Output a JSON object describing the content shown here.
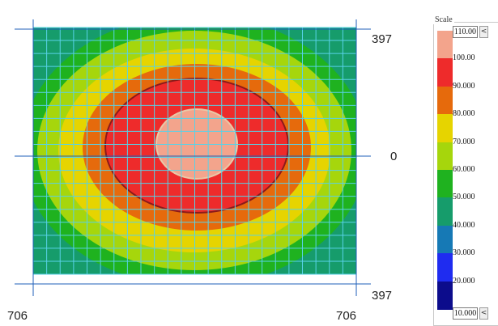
{
  "axis_labels": {
    "right_top": "397",
    "right_middle": "0",
    "right_bottom": "397",
    "bottom_left": "706",
    "bottom_right": "706"
  },
  "scale": {
    "title": "Scale",
    "max_value": "110.00",
    "min_value": "10.000",
    "max_button": "<",
    "min_button": "<",
    "levels": [
      {
        "label": "100.00",
        "color": "#f3a48c"
      },
      {
        "label": "90.000",
        "color": "#ee2b2b"
      },
      {
        "label": "80.000",
        "color": "#e66a0c"
      },
      {
        "label": "70.000",
        "color": "#e6d400"
      },
      {
        "label": "60.000",
        "color": "#a6d60c"
      },
      {
        "label": "50.000",
        "color": "#1fb21f"
      },
      {
        "label": "40.000",
        "color": "#169c6b"
      },
      {
        "label": "30.000",
        "color": "#1679b5"
      },
      {
        "label": "20.000",
        "color": "#1f2cf0"
      },
      {
        "label": "",
        "color": "#0c0c8c"
      }
    ]
  },
  "contour_colors": {
    "outer": "#169c6b",
    "band_60": "#1fb21f",
    "band_70": "#a6d60c",
    "band_80": "#e6d400",
    "band_90": "#e66a0c",
    "band_100": "#ee2b2b",
    "core": "#f3a48c",
    "edge": "#8b1a1a",
    "grid": "#58d2e8",
    "axis": "#1f5fb8"
  }
}
